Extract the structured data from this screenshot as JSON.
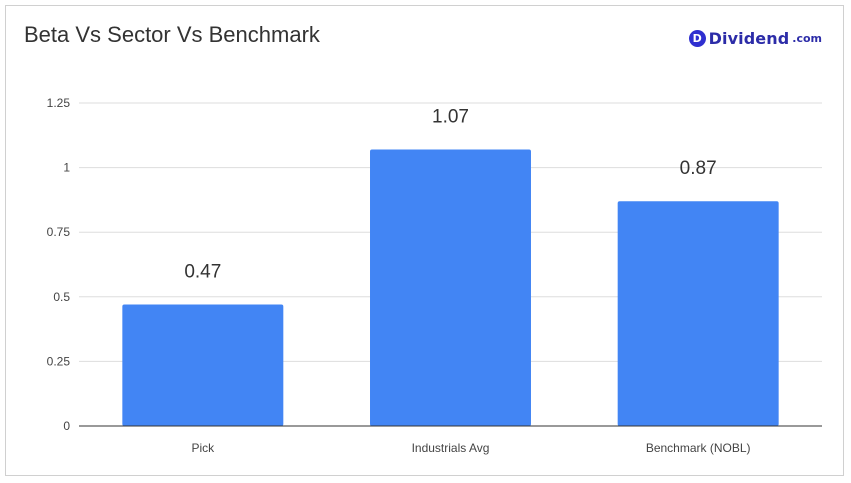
{
  "brand": {
    "badge": "D",
    "name": "Dividend",
    "tld": ".com",
    "badge_color": "#2f2fd0",
    "text_color": "#2c2ca8"
  },
  "colors": {
    "bar": "#4285f4",
    "grid": "#dddddd",
    "axis": "#333333"
  },
  "chart_data": {
    "type": "bar",
    "title": "Beta Vs Sector Vs Benchmark",
    "xlabel": "",
    "ylabel": "",
    "categories": [
      "Pick",
      "Industrials Avg",
      "Benchmark (NOBL)"
    ],
    "values": [
      0.47,
      1.07,
      0.87
    ],
    "data_labels": [
      "0.47",
      "1.07",
      "0.87"
    ],
    "yticks": [
      0,
      0.25,
      0.5,
      0.75,
      1,
      1.25
    ],
    "ytick_labels": [
      "0",
      "0.25",
      "0.5",
      "0.75",
      "1",
      "1.25"
    ],
    "ylim": [
      0,
      1.25
    ],
    "grid": true,
    "legend": "none"
  }
}
